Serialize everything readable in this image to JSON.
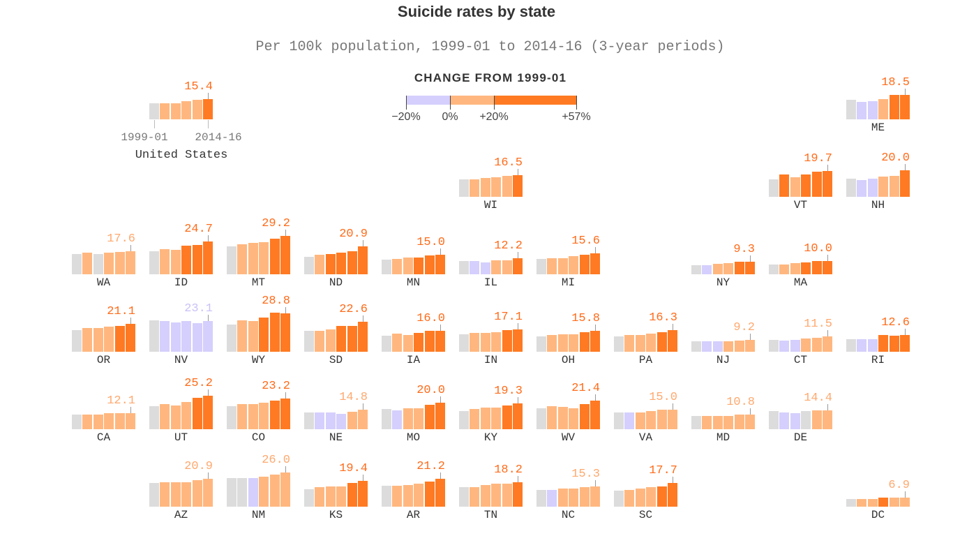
{
  "title": "Suicide rates by state",
  "subtitle": "Per 100k population, 1999-01 to 2014-16 (3-year periods)",
  "colors": {
    "baseline": "#dcdcdc",
    "negative": "#d4cffc",
    "low": "#ffb77f",
    "high": "#ff7a22",
    "label_negative": "#c9c2f7",
    "label_low": "#ffa86e",
    "label_high": "#ff6b1a"
  },
  "legend": {
    "title": "CHANGE FROM 1999-01",
    "ticks": [
      "−20%",
      "0%",
      "+20%",
      "+57%"
    ],
    "segments": [
      {
        "from": -20,
        "to": 0,
        "category": "negative"
      },
      {
        "from": 0,
        "to": 20,
        "category": "low"
      },
      {
        "from": 20,
        "to": 57,
        "category": "high"
      }
    ]
  },
  "chart_data": {
    "type": "bar",
    "kind": "tile-grid small multiples",
    "first_period": "1999-01",
    "last_period": "2014-16",
    "example": {
      "name": "United States",
      "label": "15.4",
      "values": [
        12.3,
        12.3,
        12.3,
        13.9,
        14.7,
        15.4
      ],
      "cats": "GLLLLO"
    },
    "states": [
      {
        "code": "ME",
        "label": "18.5",
        "values": [
          14.6,
          13.1,
          13.8,
          15.3,
          18.5,
          18.5
        ],
        "cats": "GPPLOO",
        "col": 10,
        "row": 0
      },
      {
        "code": "WI",
        "label": "16.5",
        "values": [
          13.4,
          13.4,
          14.1,
          14.9,
          15.6,
          16.5
        ],
        "cats": "GLLLLO",
        "col": 5,
        "row": 1
      },
      {
        "code": "VT",
        "label": "19.7",
        "values": [
          13.4,
          16.6,
          15.0,
          16.6,
          19.0,
          19.7
        ],
        "cats": "GOLOOO",
        "col": 9,
        "row": 1
      },
      {
        "code": "NH",
        "label": "20.0",
        "values": [
          13.6,
          12.7,
          13.6,
          15.2,
          15.9,
          20.0
        ],
        "cats": "GPPLLO",
        "col": 10,
        "row": 1
      },
      {
        "code": "WA",
        "label": "17.6",
        "values": [
          15.3,
          16.2,
          15.3,
          16.2,
          17.1,
          17.6
        ],
        "cats": "GLGLLL",
        "col": 0,
        "row": 2
      },
      {
        "code": "ID",
        "label": "24.7",
        "values": [
          17.3,
          18.9,
          18.2,
          21.5,
          22.2,
          24.7
        ],
        "cats": "GLLOOO",
        "col": 1,
        "row": 2
      },
      {
        "code": "MT",
        "label": "29.2",
        "values": [
          21.2,
          22.8,
          23.5,
          24.3,
          26.8,
          29.2
        ],
        "cats": "GLLLOO",
        "col": 2,
        "row": 2
      },
      {
        "code": "ND",
        "label": "20.9",
        "values": [
          13.0,
          14.6,
          15.4,
          16.1,
          17.6,
          20.9
        ],
        "cats": "GLOOOO",
        "col": 3,
        "row": 2
      },
      {
        "code": "MN",
        "label": "15.0",
        "values": [
          10.9,
          11.8,
          12.5,
          12.5,
          14.1,
          15.0
        ],
        "cats": "GLLOOO",
        "col": 4,
        "row": 2
      },
      {
        "code": "IL",
        "label": "12.2",
        "values": [
          10.0,
          10.0,
          9.1,
          10.7,
          10.7,
          12.2
        ],
        "cats": "GPPLLO",
        "col": 5,
        "row": 2
      },
      {
        "code": "MI",
        "label": "15.6",
        "values": [
          11.6,
          12.3,
          12.3,
          13.9,
          14.7,
          15.6
        ],
        "cats": "GLLLOO",
        "col": 6,
        "row": 2
      },
      {
        "code": "NY",
        "label": "9.3",
        "values": [
          6.8,
          6.8,
          7.7,
          8.4,
          9.3,
          9.3
        ],
        "cats": "GPLLOO",
        "col": 8,
        "row": 2
      },
      {
        "code": "MA",
        "label": "10.0",
        "values": [
          7.6,
          7.6,
          8.3,
          9.1,
          10.0,
          10.0
        ],
        "cats": "GLLOOO",
        "col": 9,
        "row": 2
      },
      {
        "code": "OR",
        "label": "21.1",
        "values": [
          16.4,
          18.0,
          18.0,
          18.8,
          19.5,
          21.1
        ],
        "cats": "GLLLOO",
        "col": 0,
        "row": 3
      },
      {
        "code": "NV",
        "label": "23.1",
        "values": [
          23.8,
          23.1,
          22.2,
          23.1,
          21.5,
          23.1
        ],
        "cats": "GPPPPP",
        "col": 1,
        "row": 3
      },
      {
        "code": "WY",
        "label": "28.8",
        "values": [
          20.7,
          23.9,
          23.0,
          25.6,
          29.5,
          28.8
        ],
        "cats": "GLLOOO",
        "col": 2,
        "row": 3
      },
      {
        "code": "SD",
        "label": "22.6",
        "values": [
          15.6,
          15.6,
          17.1,
          19.3,
          19.3,
          22.6
        ],
        "cats": "GLLOOO",
        "col": 3,
        "row": 3
      },
      {
        "code": "IA",
        "label": "16.0",
        "values": [
          12.0,
          13.5,
          12.7,
          14.2,
          16.0,
          16.0
        ],
        "cats": "GLLOOO",
        "col": 4,
        "row": 3
      },
      {
        "code": "IN",
        "label": "17.1",
        "values": [
          13.2,
          14.0,
          14.0,
          14.7,
          16.2,
          17.1
        ],
        "cats": "GLLLOO",
        "col": 5,
        "row": 3
      },
      {
        "code": "OH",
        "label": "15.8",
        "values": [
          11.8,
          12.5,
          13.4,
          13.4,
          14.9,
          15.8
        ],
        "cats": "GLLLOO",
        "col": 6,
        "row": 3
      },
      {
        "code": "PA",
        "label": "16.3",
        "values": [
          11.7,
          12.4,
          12.4,
          13.9,
          14.8,
          16.3
        ],
        "cats": "GLLLOO",
        "col": 7,
        "row": 3
      },
      {
        "code": "NJ",
        "label": "9.2",
        "values": [
          7.7,
          7.7,
          7.7,
          7.7,
          8.5,
          9.2
        ],
        "cats": "GPPLLL",
        "col": 8,
        "row": 3
      },
      {
        "code": "CT",
        "label": "11.5",
        "values": [
          9.1,
          8.5,
          9.1,
          10.0,
          10.7,
          11.5
        ],
        "cats": "GPPLLL",
        "col": 9,
        "row": 3
      },
      {
        "code": "RI",
        "label": "12.6",
        "values": [
          9.4,
          9.4,
          9.4,
          12.6,
          11.9,
          12.6
        ],
        "cats": "GPPOOO",
        "col": 10,
        "row": 3
      },
      {
        "code": "CA",
        "label": "12.1",
        "values": [
          11.2,
          11.2,
          11.2,
          12.1,
          12.1,
          12.1
        ],
        "cats": "GLLLLL",
        "col": 0,
        "row": 4
      },
      {
        "code": "UT",
        "label": "25.2",
        "values": [
          17.2,
          18.8,
          18.1,
          20.3,
          23.6,
          25.2
        ],
        "cats": "GLLLOO",
        "col": 1,
        "row": 4
      },
      {
        "code": "CO",
        "label": "23.2",
        "values": [
          17.5,
          19.1,
          19.1,
          20.0,
          21.6,
          23.2
        ],
        "cats": "GLLLOO",
        "col": 2,
        "row": 4
      },
      {
        "code": "NE",
        "label": "14.8",
        "values": [
          12.5,
          12.5,
          12.5,
          11.7,
          13.2,
          14.8
        ],
        "cats": "GPPPLL",
        "col": 3,
        "row": 4
      },
      {
        "code": "MO",
        "label": "20.0",
        "values": [
          15.2,
          14.3,
          15.9,
          15.9,
          18.4,
          20.0
        ],
        "cats": "GPLLOO",
        "col": 4,
        "row": 4
      },
      {
        "code": "KY",
        "label": "19.3",
        "values": [
          13.8,
          15.4,
          16.2,
          16.2,
          17.8,
          19.3
        ],
        "cats": "GLLLOO",
        "col": 5,
        "row": 4
      },
      {
        "code": "WV",
        "label": "21.4",
        "values": [
          15.8,
          17.4,
          16.7,
          15.8,
          18.9,
          21.4
        ],
        "cats": "GLLLOO",
        "col": 6,
        "row": 4
      },
      {
        "code": "VA",
        "label": "15.0",
        "values": [
          12.7,
          12.7,
          12.7,
          13.6,
          15.0,
          15.0
        ],
        "cats": "GPLLLL",
        "col": 7,
        "row": 4
      },
      {
        "code": "MD",
        "label": "10.8",
        "values": [
          9.9,
          9.9,
          9.9,
          9.9,
          10.8,
          10.8
        ],
        "cats": "GLLLLL",
        "col": 8,
        "row": 4
      },
      {
        "code": "DE",
        "label": "14.4",
        "values": [
          13.7,
          12.8,
          11.9,
          13.7,
          14.4,
          14.4
        ],
        "cats": "GPPGLL",
        "col": 9,
        "row": 4
      },
      {
        "code": "AZ",
        "label": "20.9",
        "values": [
          17.8,
          18.5,
          18.5,
          18.5,
          20.0,
          20.9
        ],
        "cats": "GLLLLL",
        "col": 1,
        "row": 5
      },
      {
        "code": "NM",
        "label": "26.0",
        "values": [
          21.8,
          21.8,
          21.8,
          22.7,
          24.3,
          26.0
        ],
        "cats": "GGPLLL",
        "col": 2,
        "row": 5
      },
      {
        "code": "KS",
        "label": "19.4",
        "values": [
          13.0,
          14.6,
          15.5,
          15.5,
          17.9,
          19.4
        ],
        "cats": "GLLLOO",
        "col": 3,
        "row": 5
      },
      {
        "code": "AR",
        "label": "21.2",
        "values": [
          15.6,
          15.6,
          16.5,
          17.2,
          18.8,
          21.2
        ],
        "cats": "GLLLOO",
        "col": 4,
        "row": 5
      },
      {
        "code": "TN",
        "label": "18.2",
        "values": [
          14.9,
          14.9,
          16.4,
          17.3,
          17.3,
          18.2
        ],
        "cats": "GLLLLO",
        "col": 5,
        "row": 5
      },
      {
        "code": "NC",
        "label": "15.3",
        "values": [
          12.9,
          12.9,
          13.8,
          13.8,
          14.6,
          15.3
        ],
        "cats": "GPLLLL",
        "col": 6,
        "row": 5
      },
      {
        "code": "SC",
        "label": "17.7",
        "values": [
          12.3,
          12.9,
          13.8,
          14.6,
          15.3,
          17.7
        ],
        "cats": "GLLLOO",
        "col": 7,
        "row": 5
      },
      {
        "code": "DC",
        "label": "6.9",
        "values": [
          6.0,
          6.0,
          6.0,
          6.9,
          6.9,
          6.9
        ],
        "cats": "GLLOLL",
        "col": 10,
        "row": 5
      }
    ]
  }
}
